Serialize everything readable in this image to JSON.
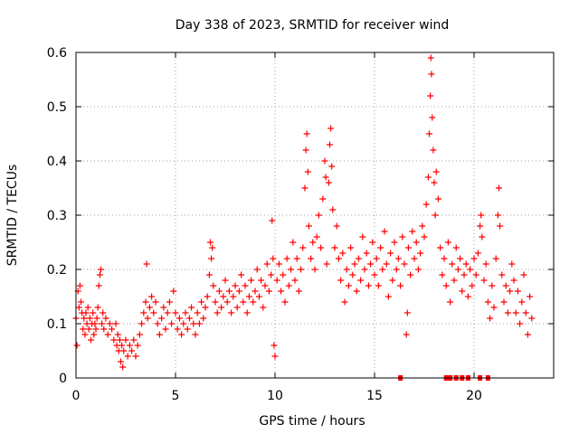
{
  "chart_data": {
    "type": "scatter",
    "title": "Day 338 of 2023, SRMTID for receiver wind",
    "xlabel": "GPS time / hours",
    "ylabel": "SRMTID / TECUs",
    "xlim": [
      0,
      24
    ],
    "ylim": [
      0,
      0.6
    ],
    "xticks": [
      0,
      5,
      10,
      15,
      20
    ],
    "yticks": [
      0,
      0.1,
      0.2,
      0.3,
      0.4,
      0.5,
      0.6
    ],
    "xtick_labels": [
      "0",
      "5",
      "10",
      "15",
      "20"
    ],
    "ytick_labels": [
      "0",
      "0.1",
      "0.2",
      "0.3",
      "0.4",
      "0.5",
      "0.6"
    ],
    "grid": true,
    "marker": "+",
    "color": "#ff0000",
    "zero_marker_x": [
      16.3,
      18.6,
      18.8,
      19.1,
      19.4,
      19.7,
      20.3,
      20.7
    ],
    "series": [
      {
        "name": "SRMTID",
        "points": [
          [
            0.0,
            0.11
          ],
          [
            0.05,
            0.06
          ],
          [
            0.1,
            0.16
          ],
          [
            0.15,
            0.13
          ],
          [
            0.2,
            0.17
          ],
          [
            0.25,
            0.14
          ],
          [
            0.3,
            0.12
          ],
          [
            0.35,
            0.09
          ],
          [
            0.4,
            0.11
          ],
          [
            0.45,
            0.08
          ],
          [
            0.5,
            0.12
          ],
          [
            0.55,
            0.1
          ],
          [
            0.6,
            0.13
          ],
          [
            0.65,
            0.09
          ],
          [
            0.7,
            0.11
          ],
          [
            0.75,
            0.07
          ],
          [
            0.8,
            0.1
          ],
          [
            0.85,
            0.12
          ],
          [
            0.9,
            0.08
          ],
          [
            0.95,
            0.1
          ],
          [
            1.0,
            0.09
          ],
          [
            1.05,
            0.11
          ],
          [
            1.1,
            0.13
          ],
          [
            1.15,
            0.17
          ],
          [
            1.2,
            0.19
          ],
          [
            1.25,
            0.2
          ],
          [
            1.3,
            0.1
          ],
          [
            1.35,
            0.12
          ],
          [
            1.4,
            0.09
          ],
          [
            1.5,
            0.11
          ],
          [
            1.6,
            0.08
          ],
          [
            1.7,
            0.1
          ],
          [
            1.8,
            0.09
          ],
          [
            1.9,
            0.07
          ],
          [
            2.0,
            0.1
          ],
          [
            2.05,
            0.06
          ],
          [
            2.1,
            0.08
          ],
          [
            2.15,
            0.05
          ],
          [
            2.2,
            0.07
          ],
          [
            2.25,
            0.03
          ],
          [
            2.3,
            0.06
          ],
          [
            2.35,
            0.02
          ],
          [
            2.4,
            0.05
          ],
          [
            2.5,
            0.07
          ],
          [
            2.6,
            0.04
          ],
          [
            2.7,
            0.06
          ],
          [
            2.8,
            0.05
          ],
          [
            2.9,
            0.07
          ],
          [
            3.0,
            0.04
          ],
          [
            3.1,
            0.06
          ],
          [
            3.2,
            0.08
          ],
          [
            3.3,
            0.1
          ],
          [
            3.4,
            0.12
          ],
          [
            3.5,
            0.14
          ],
          [
            3.55,
            0.21
          ],
          [
            3.6,
            0.11
          ],
          [
            3.7,
            0.13
          ],
          [
            3.8,
            0.15
          ],
          [
            3.9,
            0.12
          ],
          [
            4.0,
            0.14
          ],
          [
            4.1,
            0.1
          ],
          [
            4.2,
            0.08
          ],
          [
            4.3,
            0.11
          ],
          [
            4.4,
            0.13
          ],
          [
            4.5,
            0.09
          ],
          [
            4.6,
            0.12
          ],
          [
            4.7,
            0.14
          ],
          [
            4.8,
            0.1
          ],
          [
            4.9,
            0.16
          ],
          [
            5.0,
            0.12
          ],
          [
            5.1,
            0.09
          ],
          [
            5.2,
            0.11
          ],
          [
            5.3,
            0.08
          ],
          [
            5.4,
            0.1
          ],
          [
            5.5,
            0.12
          ],
          [
            5.6,
            0.09
          ],
          [
            5.7,
            0.11
          ],
          [
            5.8,
            0.13
          ],
          [
            5.9,
            0.1
          ],
          [
            6.0,
            0.08
          ],
          [
            6.1,
            0.12
          ],
          [
            6.2,
            0.1
          ],
          [
            6.3,
            0.14
          ],
          [
            6.4,
            0.11
          ],
          [
            6.5,
            0.13
          ],
          [
            6.6,
            0.15
          ],
          [
            6.7,
            0.19
          ],
          [
            6.75,
            0.25
          ],
          [
            6.8,
            0.22
          ],
          [
            6.85,
            0.24
          ],
          [
            6.9,
            0.17
          ],
          [
            7.0,
            0.14
          ],
          [
            7.1,
            0.12
          ],
          [
            7.2,
            0.16
          ],
          [
            7.3,
            0.13
          ],
          [
            7.4,
            0.15
          ],
          [
            7.5,
            0.18
          ],
          [
            7.6,
            0.14
          ],
          [
            7.7,
            0.16
          ],
          [
            7.8,
            0.12
          ],
          [
            7.9,
            0.15
          ],
          [
            8.0,
            0.17
          ],
          [
            8.1,
            0.13
          ],
          [
            8.2,
            0.16
          ],
          [
            8.3,
            0.19
          ],
          [
            8.4,
            0.14
          ],
          [
            8.5,
            0.17
          ],
          [
            8.6,
            0.12
          ],
          [
            8.7,
            0.15
          ],
          [
            8.8,
            0.18
          ],
          [
            8.9,
            0.14
          ],
          [
            9.0,
            0.16
          ],
          [
            9.1,
            0.2
          ],
          [
            9.2,
            0.15
          ],
          [
            9.3,
            0.18
          ],
          [
            9.4,
            0.13
          ],
          [
            9.5,
            0.17
          ],
          [
            9.6,
            0.21
          ],
          [
            9.7,
            0.16
          ],
          [
            9.8,
            0.19
          ],
          [
            9.85,
            0.29
          ],
          [
            9.9,
            0.22
          ],
          [
            9.95,
            0.06
          ],
          [
            10.0,
            0.04
          ],
          [
            10.1,
            0.18
          ],
          [
            10.2,
            0.21
          ],
          [
            10.3,
            0.16
          ],
          [
            10.4,
            0.19
          ],
          [
            10.5,
            0.14
          ],
          [
            10.6,
            0.22
          ],
          [
            10.7,
            0.17
          ],
          [
            10.8,
            0.2
          ],
          [
            10.9,
            0.25
          ],
          [
            11.0,
            0.18
          ],
          [
            11.1,
            0.22
          ],
          [
            11.2,
            0.16
          ],
          [
            11.3,
            0.2
          ],
          [
            11.4,
            0.24
          ],
          [
            11.5,
            0.35
          ],
          [
            11.55,
            0.42
          ],
          [
            11.6,
            0.45
          ],
          [
            11.65,
            0.38
          ],
          [
            11.7,
            0.28
          ],
          [
            11.8,
            0.22
          ],
          [
            11.9,
            0.25
          ],
          [
            12.0,
            0.2
          ],
          [
            12.1,
            0.26
          ],
          [
            12.2,
            0.3
          ],
          [
            12.3,
            0.24
          ],
          [
            12.4,
            0.33
          ],
          [
            12.5,
            0.4
          ],
          [
            12.55,
            0.37
          ],
          [
            12.6,
            0.21
          ],
          [
            12.7,
            0.36
          ],
          [
            12.75,
            0.43
          ],
          [
            12.8,
            0.46
          ],
          [
            12.85,
            0.39
          ],
          [
            12.9,
            0.31
          ],
          [
            13.0,
            0.24
          ],
          [
            13.1,
            0.28
          ],
          [
            13.2,
            0.22
          ],
          [
            13.3,
            0.18
          ],
          [
            13.4,
            0.23
          ],
          [
            13.5,
            0.14
          ],
          [
            13.6,
            0.2
          ],
          [
            13.7,
            0.17
          ],
          [
            13.8,
            0.24
          ],
          [
            13.9,
            0.19
          ],
          [
            14.0,
            0.21
          ],
          [
            14.1,
            0.16
          ],
          [
            14.2,
            0.22
          ],
          [
            14.3,
            0.18
          ],
          [
            14.4,
            0.26
          ],
          [
            14.5,
            0.2
          ],
          [
            14.6,
            0.23
          ],
          [
            14.7,
            0.17
          ],
          [
            14.8,
            0.21
          ],
          [
            14.9,
            0.25
          ],
          [
            15.0,
            0.19
          ],
          [
            15.1,
            0.22
          ],
          [
            15.2,
            0.17
          ],
          [
            15.3,
            0.24
          ],
          [
            15.4,
            0.2
          ],
          [
            15.5,
            0.27
          ],
          [
            15.6,
            0.21
          ],
          [
            15.7,
            0.15
          ],
          [
            15.8,
            0.23
          ],
          [
            15.9,
            0.18
          ],
          [
            16.0,
            0.25
          ],
          [
            16.1,
            0.2
          ],
          [
            16.2,
            0.22
          ],
          [
            16.3,
            0.17
          ],
          [
            16.4,
            0.26
          ],
          [
            16.5,
            0.21
          ],
          [
            16.6,
            0.08
          ],
          [
            16.65,
            0.12
          ],
          [
            16.7,
            0.24
          ],
          [
            16.8,
            0.19
          ],
          [
            16.9,
            0.27
          ],
          [
            17.0,
            0.22
          ],
          [
            17.1,
            0.25
          ],
          [
            17.2,
            0.2
          ],
          [
            17.3,
            0.23
          ],
          [
            17.4,
            0.28
          ],
          [
            17.5,
            0.26
          ],
          [
            17.6,
            0.32
          ],
          [
            17.7,
            0.37
          ],
          [
            17.75,
            0.45
          ],
          [
            17.8,
            0.52
          ],
          [
            17.83,
            0.59
          ],
          [
            17.86,
            0.56
          ],
          [
            17.9,
            0.48
          ],
          [
            17.95,
            0.42
          ],
          [
            18.0,
            0.36
          ],
          [
            18.05,
            0.3
          ],
          [
            18.1,
            0.38
          ],
          [
            18.2,
            0.33
          ],
          [
            18.3,
            0.24
          ],
          [
            18.4,
            0.19
          ],
          [
            18.5,
            0.22
          ],
          [
            18.6,
            0.17
          ],
          [
            18.7,
            0.25
          ],
          [
            18.8,
            0.14
          ],
          [
            18.9,
            0.21
          ],
          [
            19.0,
            0.18
          ],
          [
            19.1,
            0.24
          ],
          [
            19.2,
            0.2
          ],
          [
            19.3,
            0.22
          ],
          [
            19.4,
            0.16
          ],
          [
            19.5,
            0.19
          ],
          [
            19.6,
            0.21
          ],
          [
            19.7,
            0.15
          ],
          [
            19.8,
            0.2
          ],
          [
            19.9,
            0.17
          ],
          [
            20.0,
            0.22
          ],
          [
            20.1,
            0.19
          ],
          [
            20.2,
            0.23
          ],
          [
            20.3,
            0.28
          ],
          [
            20.35,
            0.3
          ],
          [
            20.4,
            0.26
          ],
          [
            20.5,
            0.18
          ],
          [
            20.6,
            0.21
          ],
          [
            20.7,
            0.14
          ],
          [
            20.8,
            0.11
          ],
          [
            20.9,
            0.17
          ],
          [
            21.0,
            0.13
          ],
          [
            21.1,
            0.22
          ],
          [
            21.2,
            0.3
          ],
          [
            21.25,
            0.35
          ],
          [
            21.3,
            0.28
          ],
          [
            21.4,
            0.19
          ],
          [
            21.5,
            0.14
          ],
          [
            21.6,
            0.17
          ],
          [
            21.7,
            0.12
          ],
          [
            21.8,
            0.16
          ],
          [
            21.9,
            0.21
          ],
          [
            22.0,
            0.18
          ],
          [
            22.1,
            0.12
          ],
          [
            22.2,
            0.16
          ],
          [
            22.3,
            0.1
          ],
          [
            22.4,
            0.14
          ],
          [
            22.5,
            0.19
          ],
          [
            22.6,
            0.12
          ],
          [
            22.7,
            0.08
          ],
          [
            22.8,
            0.15
          ],
          [
            22.9,
            0.11
          ]
        ]
      }
    ]
  }
}
